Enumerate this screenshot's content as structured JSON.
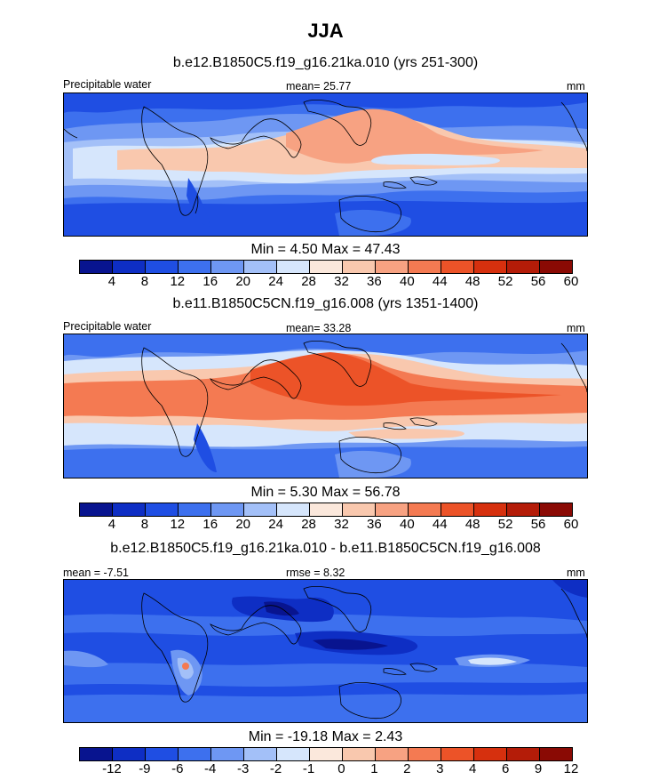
{
  "figure_title": "JJA",
  "colors": {
    "palette": [
      "#08148f",
      "#0e2ec4",
      "#1f4ee3",
      "#3d70ee",
      "#6e97f3",
      "#a3c0f8",
      "#d6e6fc",
      "#fbe8dc",
      "#f9c8ae",
      "#f7a282",
      "#f47a52",
      "#ec5328",
      "#d6300e",
      "#b41c08",
      "#8a0a04"
    ],
    "map_background": "#3a67e0",
    "coastline": "#000000"
  },
  "chart_data": [
    {
      "type": "heatmap",
      "title": "b.e12.B1850C5.f19_g16.21ka.010 (yrs 251-300)",
      "left_label": "Precipitable water",
      "center_label": "mean=  25.77",
      "units": "mm",
      "minmax": "Min =   4.50 Max =  47.43",
      "colorbar_levels": [
        "4",
        "8",
        "12",
        "16",
        "20",
        "24",
        "28",
        "32",
        "36",
        "40",
        "44",
        "48",
        "52",
        "56",
        "60"
      ],
      "mean": 25.77,
      "min": 4.5,
      "max": 47.43
    },
    {
      "type": "heatmap",
      "title": "b.e11.B1850C5CN.f19_g16.008 (yrs 1351-1400)",
      "left_label": "Precipitable water",
      "center_label": "mean=  33.28",
      "units": "mm",
      "minmax": "Min =   5.30 Max =  56.78",
      "colorbar_levels": [
        "4",
        "8",
        "12",
        "16",
        "20",
        "24",
        "28",
        "32",
        "36",
        "40",
        "44",
        "48",
        "52",
        "56",
        "60"
      ],
      "mean": 33.28,
      "min": 5.3,
      "max": 56.78
    },
    {
      "type": "heatmap",
      "title": "b.e12.B1850C5.f19_g16.21ka.010 - b.e11.B1850C5CN.f19_g16.008",
      "left_label": "mean =  -7.51",
      "center_label": "rmse =   8.32",
      "units": "mm",
      "minmax": "Min = -19.18 Max =   2.43",
      "colorbar_levels": [
        "-12",
        "-9",
        "-6",
        "-4",
        "-3",
        "-2",
        "-1",
        "0",
        "1",
        "2",
        "3",
        "4",
        "6",
        "9",
        "12"
      ],
      "mean": -7.51,
      "rmse": 8.32,
      "min": -19.18,
      "max": 2.43
    }
  ]
}
